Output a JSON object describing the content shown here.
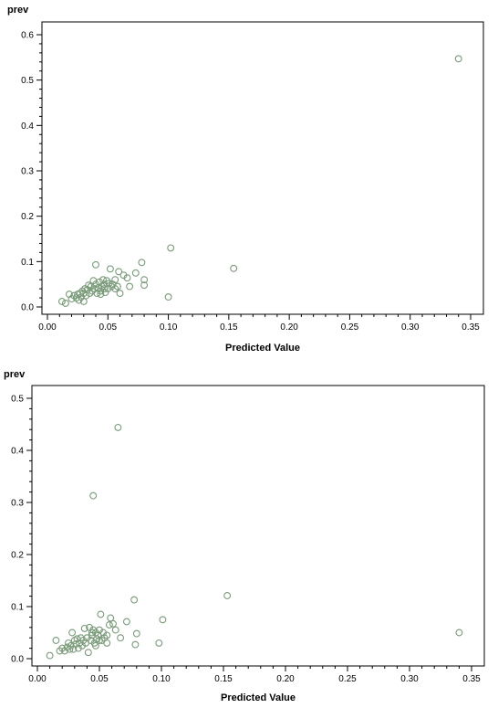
{
  "chart_data": [
    {
      "type": "scatter",
      "title": "",
      "xlabel": "Predicted Value",
      "ylabel": "prev",
      "xlim": [
        0,
        0.35
      ],
      "ylim": [
        0,
        0.6
      ],
      "xticks": [
        0.0,
        0.05,
        0.1,
        0.15,
        0.2,
        0.25,
        0.3,
        0.35
      ],
      "yticks": [
        0.0,
        0.1,
        0.2,
        0.3,
        0.4,
        0.5,
        0.6
      ],
      "xtick_labels": [
        "0.00",
        "0.05",
        "0.10",
        "0.15",
        "0.20",
        "0.25",
        "0.30",
        "0.35"
      ],
      "ytick_labels": [
        "0.0",
        "0.1",
        "0.2",
        "0.3",
        "0.4",
        "0.5",
        "0.6"
      ],
      "grid": false,
      "marker_color": "#7a9a7a",
      "points": [
        [
          0.34,
          0.547
        ],
        [
          0.102,
          0.13
        ],
        [
          0.154,
          0.085
        ],
        [
          0.1,
          0.022
        ],
        [
          0.078,
          0.098
        ],
        [
          0.08,
          0.06
        ],
        [
          0.08,
          0.048
        ],
        [
          0.073,
          0.075
        ],
        [
          0.066,
          0.064
        ],
        [
          0.063,
          0.07
        ],
        [
          0.06,
          0.03
        ],
        [
          0.059,
          0.078
        ],
        [
          0.058,
          0.045
        ],
        [
          0.056,
          0.06
        ],
        [
          0.054,
          0.05
        ],
        [
          0.052,
          0.084
        ],
        [
          0.051,
          0.052
        ],
        [
          0.05,
          0.04
        ],
        [
          0.049,
          0.058
        ],
        [
          0.048,
          0.032
        ],
        [
          0.047,
          0.05
        ],
        [
          0.046,
          0.06
        ],
        [
          0.045,
          0.045
        ],
        [
          0.044,
          0.035
        ],
        [
          0.043,
          0.055
        ],
        [
          0.042,
          0.042
        ],
        [
          0.041,
          0.03
        ],
        [
          0.04,
          0.093
        ],
        [
          0.04,
          0.05
        ],
        [
          0.039,
          0.04
        ],
        [
          0.038,
          0.058
        ],
        [
          0.037,
          0.035
        ],
        [
          0.036,
          0.045
        ],
        [
          0.035,
          0.03
        ],
        [
          0.034,
          0.048
        ],
        [
          0.033,
          0.038
        ],
        [
          0.032,
          0.025
        ],
        [
          0.031,
          0.04
        ],
        [
          0.03,
          0.03
        ],
        [
          0.03,
          0.012
        ],
        [
          0.029,
          0.035
        ],
        [
          0.028,
          0.022
        ],
        [
          0.027,
          0.03
        ],
        [
          0.026,
          0.015
        ],
        [
          0.025,
          0.028
        ],
        [
          0.024,
          0.02
        ],
        [
          0.022,
          0.025
        ],
        [
          0.02,
          0.018
        ],
        [
          0.018,
          0.028
        ],
        [
          0.015,
          0.008
        ],
        [
          0.012,
          0.012
        ],
        [
          0.044,
          0.028
        ],
        [
          0.047,
          0.04
        ],
        [
          0.053,
          0.045
        ],
        [
          0.056,
          0.04
        ],
        [
          0.068,
          0.045
        ]
      ]
    },
    {
      "type": "scatter",
      "title": "",
      "xlabel": "Predicted Value",
      "ylabel": "prev",
      "xlim": [
        0,
        0.35
      ],
      "ylim": [
        0,
        0.5
      ],
      "xticks": [
        0.0,
        0.05,
        0.1,
        0.15,
        0.2,
        0.25,
        0.3,
        0.35
      ],
      "yticks": [
        0.0,
        0.1,
        0.2,
        0.3,
        0.4,
        0.5
      ],
      "xtick_labels": [
        "0.00",
        "0.05",
        "0.10",
        "0.15",
        "0.20",
        "0.25",
        "0.30",
        "0.35"
      ],
      "ytick_labels": [
        "0.0",
        "0.1",
        "0.2",
        "0.3",
        "0.4",
        "0.5"
      ],
      "grid": false,
      "marker_color": "#7a9a7a",
      "points": [
        [
          0.065,
          0.444
        ],
        [
          0.045,
          0.313
        ],
        [
          0.153,
          0.121
        ],
        [
          0.078,
          0.113
        ],
        [
          0.34,
          0.05
        ],
        [
          0.101,
          0.075
        ],
        [
          0.098,
          0.03
        ],
        [
          0.08,
          0.048
        ],
        [
          0.079,
          0.027
        ],
        [
          0.072,
          0.071
        ],
        [
          0.067,
          0.04
        ],
        [
          0.063,
          0.055
        ],
        [
          0.061,
          0.067
        ],
        [
          0.059,
          0.078
        ],
        [
          0.058,
          0.065
        ],
        [
          0.056,
          0.045
        ],
        [
          0.054,
          0.04
        ],
        [
          0.053,
          0.05
        ],
        [
          0.052,
          0.035
        ],
        [
          0.051,
          0.085
        ],
        [
          0.05,
          0.055
        ],
        [
          0.049,
          0.045
        ],
        [
          0.048,
          0.038
        ],
        [
          0.047,
          0.05
        ],
        [
          0.046,
          0.03
        ],
        [
          0.045,
          0.055
        ],
        [
          0.044,
          0.045
        ],
        [
          0.043,
          0.035
        ],
        [
          0.042,
          0.06
        ],
        [
          0.041,
          0.012
        ],
        [
          0.04,
          0.04
        ],
        [
          0.039,
          0.03
        ],
        [
          0.038,
          0.058
        ],
        [
          0.037,
          0.035
        ],
        [
          0.036,
          0.025
        ],
        [
          0.035,
          0.04
        ],
        [
          0.034,
          0.03
        ],
        [
          0.033,
          0.02
        ],
        [
          0.032,
          0.038
        ],
        [
          0.031,
          0.028
        ],
        [
          0.03,
          0.035
        ],
        [
          0.029,
          0.018
        ],
        [
          0.028,
          0.05
        ],
        [
          0.027,
          0.025
        ],
        [
          0.026,
          0.018
        ],
        [
          0.025,
          0.03
        ],
        [
          0.024,
          0.022
        ],
        [
          0.022,
          0.015
        ],
        [
          0.02,
          0.02
        ],
        [
          0.018,
          0.015
        ],
        [
          0.015,
          0.035
        ],
        [
          0.01,
          0.006
        ],
        [
          0.044,
          0.05
        ],
        [
          0.047,
          0.025
        ],
        [
          0.05,
          0.035
        ],
        [
          0.056,
          0.03
        ]
      ]
    }
  ]
}
